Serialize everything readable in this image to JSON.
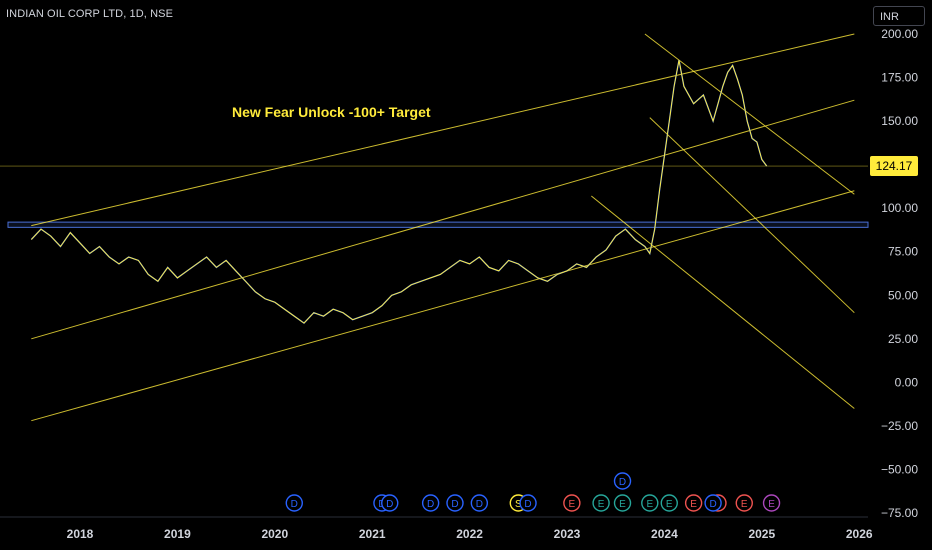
{
  "header": {
    "symbol_title": "INDIAN OIL CORP LTD, 1D, NSE",
    "currency": "INR"
  },
  "annotation": "New Fear Unlock -100+ Target",
  "last_price_label": "124.17",
  "colors": {
    "background": "#000000",
    "axis_text": "#d1d4dc",
    "price_series": "#ffeb3b",
    "price_series_alt": "#2962ff",
    "trendline": "#ffeb3b",
    "zone_border": "#4a6fd6",
    "dividend_marker": "#2962ff",
    "earnings_marker": "#ef5350",
    "earnings_marker_alt": "#26a69a",
    "split_marker": "#ffeb3b",
    "earnings_marker_future": "#ab47bc"
  },
  "chart_data": {
    "type": "line",
    "title": "INDIAN OIL CORP LTD, 1D, NSE",
    "ylim": [
      -75,
      200
    ],
    "xlim": [
      2017.5,
      2026.0
    ],
    "y_ticks": [
      "200.00",
      "175.00",
      "150.00",
      "125.00",
      "100.00",
      "75.00",
      "50.00",
      "25.00",
      "0.00",
      "−25.00",
      "−50.00",
      "−75.00"
    ],
    "y_tick_values": [
      200,
      175,
      150,
      125,
      100,
      75,
      50,
      25,
      0,
      -25,
      -50,
      -75
    ],
    "x_ticks": [
      "2018",
      "2019",
      "2020",
      "2021",
      "2022",
      "2023",
      "2024",
      "2025",
      "2026"
    ],
    "x_tick_values": [
      2018,
      2019,
      2020,
      2021,
      2022,
      2023,
      2024,
      2025,
      2026
    ],
    "series": [
      {
        "x": [
          2017.5,
          2017.6,
          2017.7,
          2017.8,
          2017.9,
          2018.0,
          2018.1,
          2018.2,
          2018.3,
          2018.4,
          2018.5,
          2018.6,
          2018.7,
          2018.8,
          2018.9,
          2019.0,
          2019.1,
          2019.2,
          2019.3,
          2019.4,
          2019.5,
          2019.6,
          2019.7,
          2019.8,
          2019.9,
          2020.0,
          2020.1,
          2020.2,
          2020.3,
          2020.4,
          2020.5,
          2020.6,
          2020.7,
          2020.8,
          2020.9,
          2021.0,
          2021.1,
          2021.2,
          2021.3,
          2021.4,
          2021.5,
          2021.6,
          2021.7,
          2021.8,
          2021.9,
          2022.0,
          2022.1,
          2022.2,
          2022.3,
          2022.4,
          2022.5,
          2022.6,
          2022.7,
          2022.8,
          2022.9,
          2023.0,
          2023.1,
          2023.2,
          2023.3,
          2023.4,
          2023.5,
          2023.6,
          2023.7,
          2023.8,
          2023.85,
          2023.9,
          2023.95,
          2024.0,
          2024.05,
          2024.1,
          2024.15,
          2024.2,
          2024.3,
          2024.4,
          2024.5,
          2024.55,
          2024.6,
          2024.65,
          2024.7,
          2024.75,
          2024.8,
          2024.85,
          2024.9,
          2024.95,
          2025.0,
          2025.05
        ],
        "values": [
          82,
          88,
          84,
          78,
          86,
          80,
          74,
          78,
          72,
          68,
          72,
          70,
          62,
          58,
          66,
          60,
          64,
          68,
          72,
          66,
          70,
          64,
          58,
          52,
          48,
          46,
          42,
          38,
          34,
          40,
          38,
          42,
          40,
          36,
          38,
          40,
          44,
          50,
          52,
          56,
          58,
          60,
          62,
          66,
          70,
          68,
          72,
          66,
          64,
          70,
          68,
          64,
          60,
          58,
          62,
          64,
          68,
          66,
          72,
          76,
          84,
          88,
          82,
          78,
          74,
          88,
          110,
          130,
          150,
          170,
          185,
          170,
          160,
          165,
          150,
          160,
          170,
          178,
          182,
          174,
          165,
          150,
          140,
          138,
          128,
          124.17
        ]
      }
    ],
    "trendlines": [
      {
        "from": [
          2017.5,
          90
        ],
        "to": [
          2025.95,
          200
        ]
      },
      {
        "from": [
          2017.5,
          25
        ],
        "to": [
          2025.95,
          162
        ]
      },
      {
        "from": [
          2017.5,
          -22
        ],
        "to": [
          2025.95,
          110
        ]
      },
      {
        "from": [
          2023.25,
          107
        ],
        "to": [
          2025.95,
          -15
        ]
      },
      {
        "from": [
          2023.8,
          200
        ],
        "to": [
          2025.95,
          108
        ]
      },
      {
        "from": [
          2023.85,
          152
        ],
        "to": [
          2025.95,
          40
        ]
      }
    ],
    "horizontal_zone": {
      "low": 89,
      "high": 92,
      "xstart": 2017.5
    },
    "horizontal_line": {
      "value": 124.17
    },
    "events": [
      {
        "x": 2020.2,
        "label": "D",
        "kind": "dividend"
      },
      {
        "x": 2021.1,
        "label": "D",
        "kind": "dividend"
      },
      {
        "x": 2021.18,
        "label": "D",
        "kind": "dividend"
      },
      {
        "x": 2021.6,
        "label": "D",
        "kind": "dividend"
      },
      {
        "x": 2021.85,
        "label": "D",
        "kind": "dividend"
      },
      {
        "x": 2022.1,
        "label": "D",
        "kind": "dividend"
      },
      {
        "x": 2022.5,
        "label": "S",
        "kind": "split"
      },
      {
        "x": 2022.6,
        "label": "D",
        "kind": "dividend"
      },
      {
        "x": 2023.05,
        "label": "E",
        "kind": "earnings"
      },
      {
        "x": 2023.35,
        "label": "E",
        "kind": "earnings_alt"
      },
      {
        "x": 2023.57,
        "label": "E",
        "kind": "earnings_alt"
      },
      {
        "x": 2023.57,
        "label": "D",
        "kind": "dividend",
        "row": 2
      },
      {
        "x": 2023.85,
        "label": "E",
        "kind": "earnings_alt"
      },
      {
        "x": 2024.05,
        "label": "E",
        "kind": "earnings_alt"
      },
      {
        "x": 2024.3,
        "label": "E",
        "kind": "earnings"
      },
      {
        "x": 2024.55,
        "label": "E",
        "kind": "earnings"
      },
      {
        "x": 2024.5,
        "label": "D",
        "kind": "dividend"
      },
      {
        "x": 2024.82,
        "label": "E",
        "kind": "earnings"
      },
      {
        "x": 2025.1,
        "label": "E",
        "kind": "earnings_future"
      }
    ]
  }
}
